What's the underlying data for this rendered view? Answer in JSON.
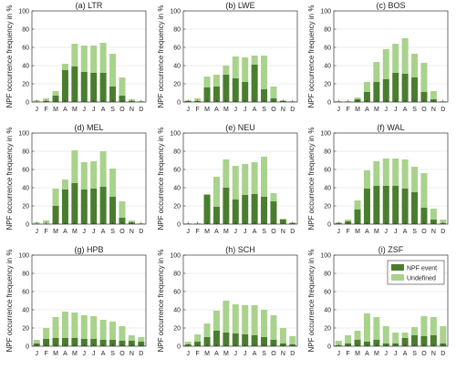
{
  "figure": {
    "ylabel": "NPF occurrence frequency in %",
    "yticks": [
      0,
      20,
      40,
      60,
      80,
      100
    ],
    "ylim": [
      0,
      100
    ],
    "legend": {
      "panel": "(i) ZSF",
      "placement": "top-right",
      "entries": [
        "NPF event",
        "Undefined"
      ]
    }
  },
  "colors": {
    "event": "#4a7d2e",
    "undefined": "#a9d28c",
    "axis": "#333333",
    "grid": "#d9d9d9"
  },
  "chart_data": [
    {
      "type": "bar",
      "stacked": true,
      "title": "(a) LTR",
      "categories": [
        "J",
        "F",
        "M",
        "A",
        "M",
        "J",
        "J",
        "A",
        "S",
        "O",
        "N",
        "D"
      ],
      "series": [
        {
          "name": "NPF event",
          "values": [
            0,
            1,
            7,
            35,
            39,
            33,
            32,
            32,
            17,
            7,
            1,
            0
          ]
        },
        {
          "name": "Undefined",
          "values": [
            2,
            3,
            5,
            7,
            25,
            29,
            30,
            33,
            36,
            20,
            2,
            1
          ]
        }
      ],
      "ylim": [
        0,
        100
      ]
    },
    {
      "type": "bar",
      "stacked": true,
      "title": "(b) LWE",
      "categories": [
        "J",
        "F",
        "M",
        "A",
        "M",
        "J",
        "J",
        "A",
        "S",
        "O",
        "N",
        "D"
      ],
      "series": [
        {
          "name": "NPF event",
          "values": [
            1,
            1,
            16,
            17,
            30,
            26,
            22,
            41,
            14,
            4,
            1,
            0
          ]
        },
        {
          "name": "Undefined",
          "values": [
            1,
            3,
            12,
            13,
            10,
            24,
            27,
            10,
            37,
            13,
            1,
            1
          ]
        }
      ],
      "ylim": [
        0,
        100
      ]
    },
    {
      "type": "bar",
      "stacked": true,
      "title": "(c) BOS",
      "categories": [
        "J",
        "F",
        "M",
        "A",
        "M",
        "J",
        "J",
        "A",
        "S",
        "O",
        "N",
        "D"
      ],
      "series": [
        {
          "name": "NPF event",
          "values": [
            0,
            0,
            3,
            11,
            22,
            25,
            32,
            31,
            27,
            11,
            3,
            0
          ]
        },
        {
          "name": "Undefined",
          "values": [
            1,
            1,
            2,
            11,
            22,
            33,
            32,
            39,
            26,
            32,
            9,
            1
          ]
        }
      ],
      "ylim": [
        0,
        100
      ]
    },
    {
      "type": "bar",
      "stacked": true,
      "title": "(d) MEL",
      "categories": [
        "J",
        "F",
        "M",
        "A",
        "M",
        "J",
        "J",
        "A",
        "S",
        "O",
        "N",
        "D"
      ],
      "series": [
        {
          "name": "NPF event",
          "values": [
            0,
            0,
            20,
            38,
            45,
            38,
            39,
            41,
            30,
            7,
            2,
            0
          ]
        },
        {
          "name": "Undefined",
          "values": [
            2,
            4,
            19,
            11,
            36,
            30,
            30,
            39,
            31,
            18,
            2,
            1
          ]
        }
      ],
      "ylim": [
        0,
        100
      ]
    },
    {
      "type": "bar",
      "stacked": true,
      "title": "(e) NEU",
      "categories": [
        "J",
        "F",
        "M",
        "A",
        "M",
        "J",
        "J",
        "A",
        "S",
        "O",
        "N",
        "D"
      ],
      "series": [
        {
          "name": "NPF event",
          "values": [
            0,
            0,
            32,
            19,
            40,
            27,
            32,
            33,
            30,
            25,
            5,
            1
          ]
        },
        {
          "name": "Undefined",
          "values": [
            1,
            1,
            1,
            33,
            31,
            37,
            34,
            35,
            44,
            9,
            1,
            1
          ]
        }
      ],
      "ylim": [
        0,
        100
      ]
    },
    {
      "type": "bar",
      "stacked": true,
      "title": "(f) WAL",
      "categories": [
        "J",
        "F",
        "M",
        "A",
        "M",
        "J",
        "J",
        "A",
        "S",
        "O",
        "N",
        "D"
      ],
      "series": [
        {
          "name": "NPF event",
          "values": [
            1,
            3,
            16,
            39,
            42,
            42,
            42,
            39,
            35,
            18,
            5,
            1
          ]
        },
        {
          "name": "Undefined",
          "values": [
            1,
            2,
            10,
            20,
            27,
            30,
            30,
            32,
            28,
            38,
            12,
            4
          ]
        }
      ],
      "ylim": [
        0,
        100
      ]
    },
    {
      "type": "bar",
      "stacked": true,
      "title": "(g) HPB",
      "categories": [
        "J",
        "F",
        "M",
        "A",
        "M",
        "J",
        "J",
        "A",
        "S",
        "O",
        "N",
        "D"
      ],
      "series": [
        {
          "name": "NPF event",
          "values": [
            3,
            8,
            9,
            9,
            9,
            8,
            8,
            7,
            7,
            6,
            6,
            5
          ]
        },
        {
          "name": "Undefined",
          "values": [
            4,
            12,
            23,
            29,
            28,
            26,
            25,
            22,
            20,
            16,
            6,
            5
          ]
        }
      ],
      "ylim": [
        0,
        100
      ]
    },
    {
      "type": "bar",
      "stacked": true,
      "title": "(h) SCH",
      "categories": [
        "J",
        "F",
        "M",
        "A",
        "M",
        "J",
        "J",
        "A",
        "S",
        "O",
        "N",
        "D"
      ],
      "series": [
        {
          "name": "NPF event",
          "values": [
            2,
            5,
            10,
            17,
            15,
            14,
            13,
            12,
            10,
            7,
            3,
            2
          ]
        },
        {
          "name": "Undefined",
          "values": [
            3,
            8,
            15,
            22,
            35,
            32,
            32,
            33,
            30,
            27,
            17,
            9
          ]
        }
      ],
      "ylim": [
        0,
        100
      ]
    },
    {
      "type": "bar",
      "stacked": true,
      "title": "(i) ZSF",
      "categories": [
        "J",
        "F",
        "M",
        "A",
        "M",
        "J",
        "J",
        "A",
        "S",
        "O",
        "N",
        "D"
      ],
      "series": [
        {
          "name": "NPF event",
          "values": [
            1,
            3,
            7,
            5,
            7,
            3,
            3,
            9,
            12,
            11,
            12,
            3
          ]
        },
        {
          "name": "Undefined",
          "values": [
            5,
            9,
            10,
            31,
            25,
            19,
            12,
            6,
            9,
            22,
            20,
            19
          ]
        }
      ],
      "ylim": [
        0,
        100
      ]
    }
  ]
}
